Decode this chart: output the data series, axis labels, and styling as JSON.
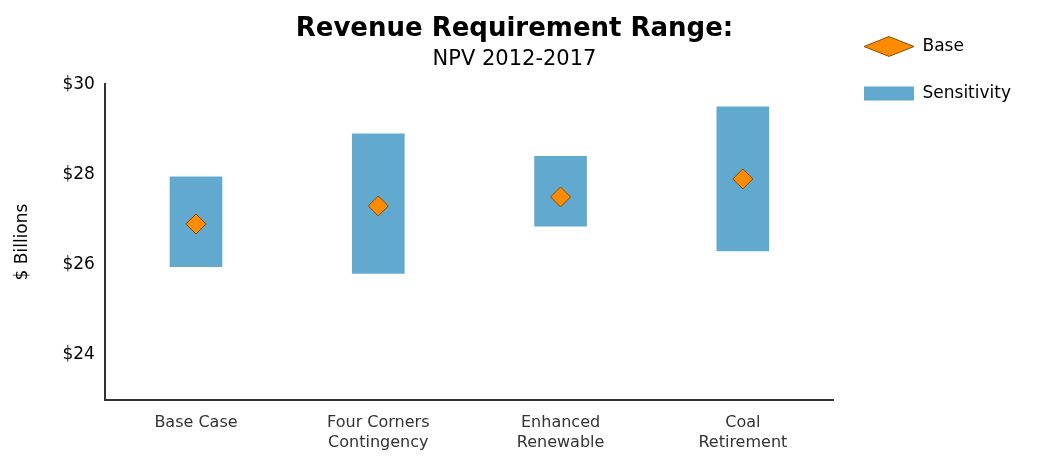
{
  "chart_data": {
    "type": "bar",
    "title": "Revenue Requirement Range:",
    "subtitle": "NPV 2012-2017",
    "ylabel": "$ Billions",
    "categories": [
      "Base Case",
      "Four Corners Contingency",
      "Enhanced Renewable",
      "Coal Retirement"
    ],
    "series": [
      {
        "name": "Sensitivity",
        "color": "#62a9d0",
        "values": [
          2.0,
          3.1,
          1.55,
          3.2
        ],
        "base": [
          25.95,
          25.8,
          26.85,
          26.3
        ]
      },
      {
        "name": "Base",
        "type": "scatter",
        "marker": "diamond",
        "color": "#ff8c00",
        "x": [
          "Base Case",
          "Four Corners Contingency",
          "Enhanced Renewable",
          "Coal Retirement"
        ],
        "values": [
          26.9,
          27.3,
          27.5,
          27.9
        ]
      }
    ],
    "ylim": [
      23,
      30
    ],
    "yticks": [
      {
        "value": 24,
        "label": "$24"
      },
      {
        "value": 26,
        "label": "$26"
      },
      {
        "value": 28,
        "label": "$28"
      },
      {
        "value": 30,
        "label": "$30"
      }
    ],
    "grid": false,
    "legend": "right"
  }
}
